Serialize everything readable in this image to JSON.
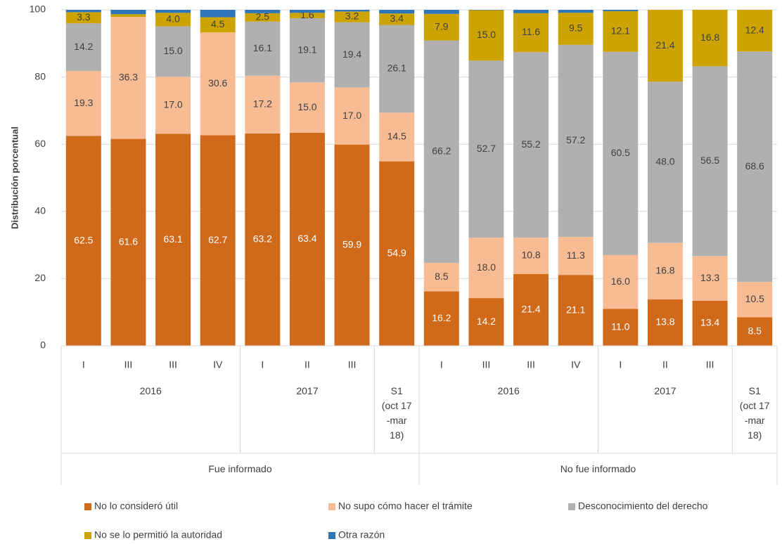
{
  "chart_data": {
    "type": "stacked_bar",
    "y_label": "Distribución porcentual",
    "categories": [
      "I",
      "III",
      "III",
      "IV",
      "I",
      "II",
      "III",
      null,
      "I",
      "III",
      "III",
      "IV",
      "I",
      "II",
      "III",
      null
    ],
    "groups": [
      {
        "label": "2016",
        "span": 4
      },
      {
        "label": "2017",
        "span": 3
      },
      {
        "label": "S1\n(oct 17\n-mar\n18)",
        "span": 1
      },
      {
        "label": "2016",
        "span": 4
      },
      {
        "label": "2017",
        "span": 3
      },
      {
        "label": "S1\n(oct 17\n-mar\n18)",
        "span": 1
      }
    ],
    "supergroups": [
      {
        "label": "Fue informado",
        "span": 8
      },
      {
        "label": "No fue informado",
        "span": 8
      }
    ],
    "ylim": [
      0,
      100
    ],
    "yticks": [
      0,
      20,
      40,
      60,
      80,
      100
    ],
    "grid": true,
    "series": [
      {
        "name": "No lo consideró útil",
        "color": "#d0691a",
        "label_color": "#ffffff",
        "values": [
          62.5,
          61.6,
          63.1,
          62.7,
          63.2,
          63.4,
          59.9,
          54.9,
          16.2,
          14.2,
          21.4,
          21.1,
          11.0,
          13.8,
          13.4,
          8.5
        ],
        "value_labels": [
          "62.5",
          "61.6",
          "63.1",
          "62.7",
          "63.2",
          "63.4",
          "59.9",
          "54.9",
          "16.2",
          "14.2",
          "21.4",
          "21.1",
          "11.0",
          "13.8",
          "13.4",
          "8.5"
        ]
      },
      {
        "name": "No supo cómo hacer el trámite",
        "color": "#f8bc94",
        "label_color": "#404040",
        "values": [
          19.3,
          36.3,
          17.0,
          30.6,
          17.2,
          15.0,
          17.0,
          14.5,
          8.5,
          18.0,
          10.8,
          11.3,
          16.0,
          16.8,
          13.3,
          10.5
        ],
        "value_labels": [
          "19.3",
          "36.3",
          "17.0",
          "30.6",
          "17.2",
          "15.0",
          "17.0",
          "14.5",
          "8.5",
          "18.0",
          "10.8",
          "11.3",
          "16.0",
          "16.8",
          "13.3",
          "10.5"
        ]
      },
      {
        "name": "Desconocimiento del derecho",
        "color": "#b0b0b0",
        "label_color": "#404040",
        "values": [
          14.2,
          0,
          15.0,
          0,
          16.1,
          19.1,
          19.4,
          26.1,
          66.2,
          52.7,
          55.2,
          57.2,
          60.5,
          48.0,
          56.5,
          68.6
        ],
        "value_labels": [
          "14.2",
          null,
          "15.0",
          null,
          "16.1",
          "19.1",
          "19.4",
          "26.1",
          "66.2",
          "52.7",
          "55.2",
          "57.2",
          "60.5",
          "48.0",
          "56.5",
          "68.6"
        ]
      },
      {
        "name": "No se lo permitió la autoridad",
        "color": "#cca300",
        "label_color": "#404040",
        "values": [
          3.3,
          0.8,
          4.0,
          4.5,
          2.5,
          1.6,
          3.2,
          3.4,
          7.9,
          15.0,
          11.6,
          9.5,
          12.1,
          21.4,
          16.8,
          12.4
        ],
        "value_labels": [
          "3.3",
          null,
          "4.0",
          "4.5",
          "2.5",
          "1.6",
          "3.2",
          "3.4",
          "7.9",
          "15.0",
          "11.6",
          "9.5",
          "12.1",
          "21.4",
          "16.8",
          "12.4"
        ]
      },
      {
        "name": "Otra razón",
        "color": "#2e75b6",
        "label_color": "#404040",
        "values": [
          0.7,
          1.3,
          0.9,
          2.2,
          1.0,
          0.9,
          0.5,
          1.1,
          1.2,
          0.1,
          1.0,
          0.9,
          0.4,
          0,
          0,
          0
        ],
        "value_labels": [
          null,
          null,
          null,
          null,
          null,
          null,
          null,
          null,
          null,
          null,
          null,
          null,
          null,
          null,
          null,
          null
        ]
      }
    ]
  }
}
